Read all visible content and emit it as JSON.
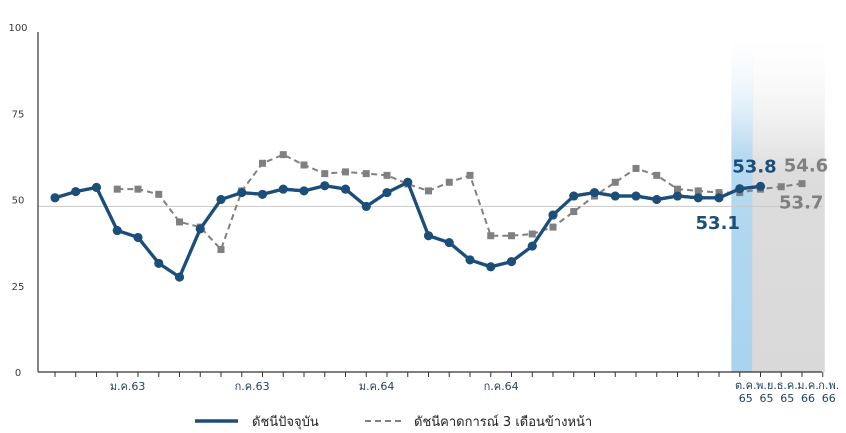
{
  "chart_data": {
    "type": "line",
    "ylim": [
      0,
      100
    ],
    "yticks": [
      "0",
      "25",
      "50",
      "75",
      "100"
    ],
    "reference_line": 48,
    "x_tick_labels": [
      "ม.ค.63",
      "ก.ค.63",
      "ม.ค.64",
      "ก.ค.64"
    ],
    "end_tick_labels": [
      {
        "top": "ต.ค.",
        "bottom": "65"
      },
      {
        "top": "พ.ย.",
        "bottom": "65"
      },
      {
        "top": "ธ.ค.",
        "bottom": "65"
      },
      {
        "top": "ม.ค.",
        "bottom": "66"
      },
      {
        "top": "ก.พ.",
        "bottom": "66"
      }
    ],
    "series": [
      {
        "name": "ดัชนีปัจจุบัน",
        "style": "solid",
        "color": "#1b4f7a",
        "values": [
          50.5,
          52.3,
          53.5,
          41.0,
          39.0,
          31.5,
          27.5,
          41.5,
          50.0,
          52.0,
          51.5,
          53.0,
          52.5,
          54.0,
          53.0,
          48.0,
          52.0,
          55.0,
          39.5,
          37.5,
          32.5,
          30.5,
          32.0,
          36.5,
          45.5,
          51.0,
          52.0,
          51.0,
          51.0,
          50.0,
          51.0,
          50.5,
          50.5,
          53.1,
          53.8
        ]
      },
      {
        "name": "ดัชนีคาดการณ์ 3 เดือนข้างหน้า",
        "style": "dashed",
        "color": "#808080",
        "start_index": 3,
        "values": [
          53.0,
          53.0,
          51.5,
          43.5,
          42.0,
          35.5,
          52.5,
          60.5,
          63.0,
          60.0,
          57.5,
          58.0,
          57.5,
          57.0,
          54.5,
          52.5,
          55.0,
          57.0,
          39.5,
          39.5,
          40.0,
          42.0,
          46.5,
          51.0,
          55.0,
          59.0,
          57.0,
          53.0,
          52.5,
          52.0,
          52.0,
          53.0,
          53.7,
          54.6
        ]
      }
    ],
    "annotations": [
      {
        "text": "53.8",
        "series": 0,
        "index": 34,
        "color": "#1b4f7a"
      },
      {
        "text": "53.1",
        "series": 0,
        "index": 33,
        "color": "#1b4f7a"
      },
      {
        "text": "54.6",
        "series": 1,
        "index": 37,
        "color": "#808080"
      },
      {
        "text": "53.7",
        "series": 1,
        "index": 35,
        "color": "#808080"
      }
    ],
    "highlight": [
      {
        "from_index": 33,
        "to_index": 34,
        "color": "#a9d3ee"
      },
      {
        "from_index": 34,
        "to_index": 37,
        "color": "#d9d9d9"
      }
    ],
    "legend": {
      "position": "bottom",
      "items": [
        {
          "label": "ดัชนีปัจจุบัน",
          "style": "solid",
          "color": "#1b4f7a"
        },
        {
          "label": "ดัชนีคาดการณ์ 3 เดือนข้างหน้า",
          "style": "dashed",
          "color": "#808080"
        }
      ]
    }
  }
}
